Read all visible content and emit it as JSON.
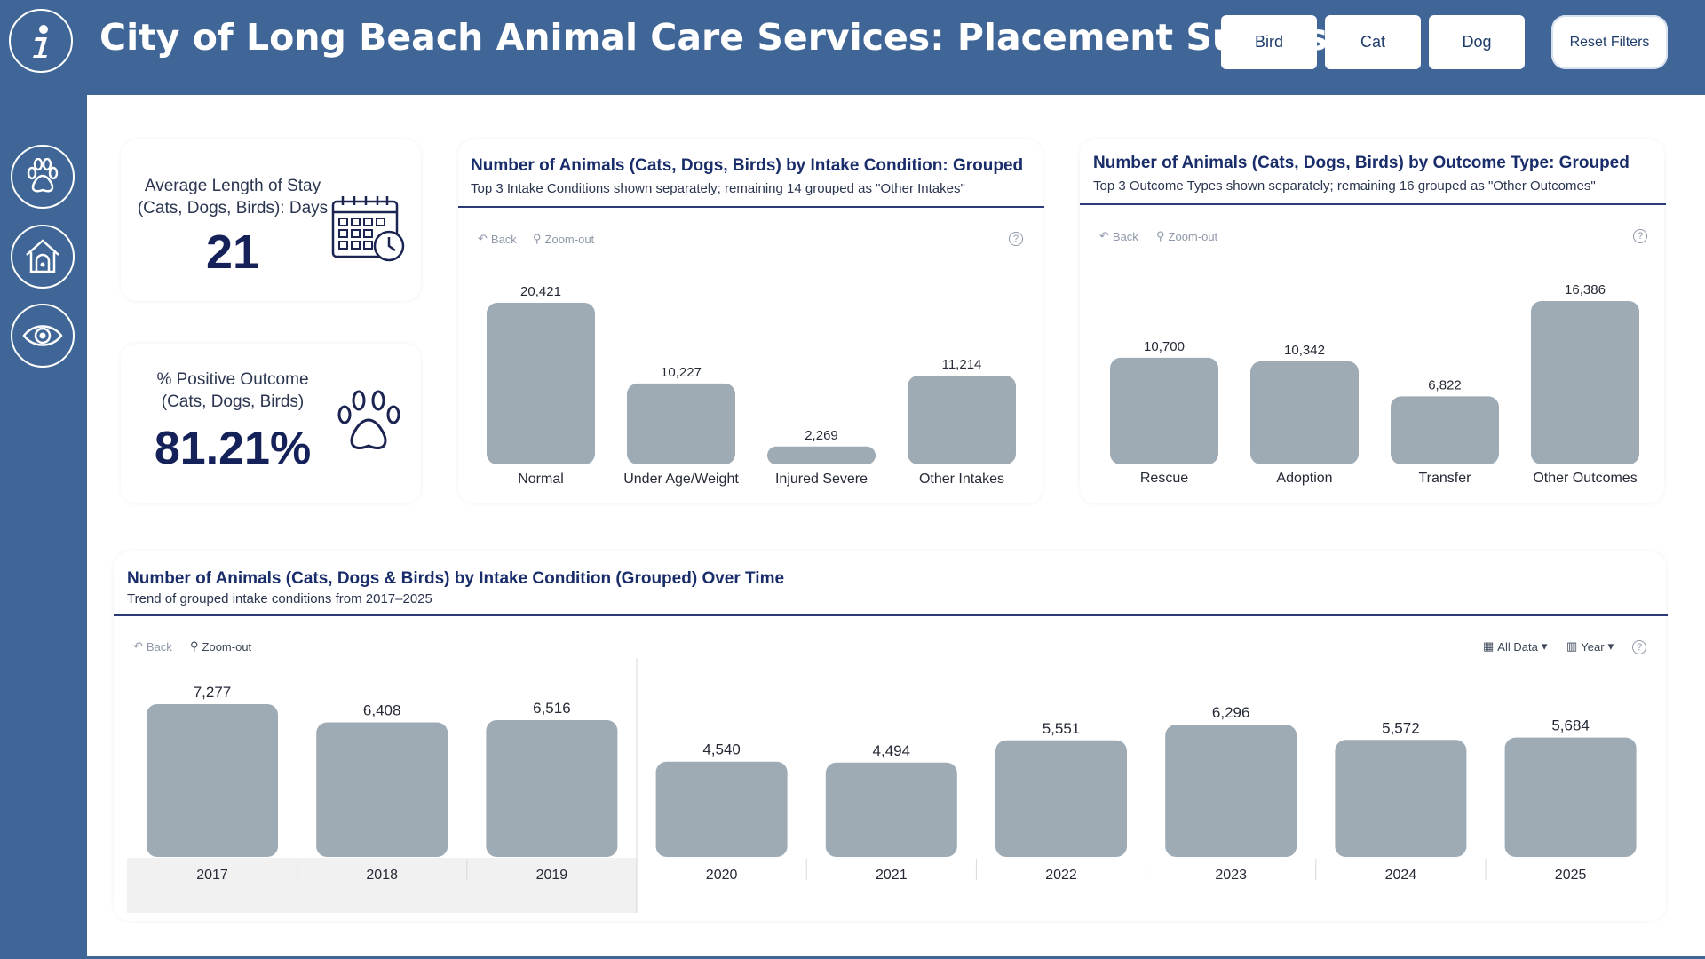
{
  "header": {
    "title": "City of Long Beach Animal Care Services: Placement Success",
    "filters": [
      "Bird",
      "Cat",
      "Dog"
    ],
    "reset_label": "Reset Filters"
  },
  "sidebar": {
    "icons": [
      "info-icon",
      "paw-icon",
      "pet-house-icon",
      "eye-icon"
    ]
  },
  "kpi": {
    "stay": {
      "label_line1": "Average Length of Stay",
      "label_line2": "(Cats, Dogs, Birds): Days",
      "value": "21"
    },
    "positive": {
      "label_line1": "% Positive Outcome",
      "label_line2": "(Cats, Dogs, Birds)",
      "value": "81.21%"
    }
  },
  "toolbar": {
    "back": "Back",
    "zoom_out": "Zoom-out",
    "all_data": "All Data",
    "year": "Year",
    "help": "?"
  },
  "charts": {
    "intake": {
      "title": "Number of Animals (Cats, Dogs, Birds) by Intake Condition: Grouped",
      "subtitle": "Top 3 Intake Conditions shown separately; remaining 14 grouped as \"Other Intakes\""
    },
    "outcome": {
      "title": "Number of Animals (Cats, Dogs, Birds) by Outcome Type: Grouped",
      "subtitle": "Top 3 Outcome Types shown separately; remaining 16 grouped as \"Other Outcomes\""
    },
    "trend": {
      "title": "Number of Animals (Cats, Dogs & Birds) by Intake Condition (Grouped) Over Time",
      "subtitle": "Trend of grouped intake conditions from 2017–2025"
    }
  },
  "chart_data": [
    {
      "type": "bar",
      "title": "Number of Animals (Cats, Dogs, Birds) by Intake Condition: Grouped",
      "categories": [
        "Normal",
        "Under Age/Weight",
        "Injured Severe",
        "Other Intakes"
      ],
      "values": [
        20421,
        10227,
        2269,
        11214
      ],
      "labels": [
        "20,421",
        "10,227",
        "2,269",
        "11,214"
      ],
      "color": "#9eabb5",
      "ylim": [
        0,
        20421
      ]
    },
    {
      "type": "bar",
      "title": "Number of Animals (Cats, Dogs, Birds) by Outcome Type: Grouped",
      "categories": [
        "Rescue",
        "Adoption",
        "Transfer",
        "Other Outcomes"
      ],
      "values": [
        10700,
        10342,
        6822,
        16386
      ],
      "labels": [
        "10,700",
        "10,342",
        "6,822",
        "16,386"
      ],
      "color": "#9eabb5",
      "ylim": [
        0,
        16386
      ]
    },
    {
      "type": "bar",
      "title": "Number of Animals (Cats, Dogs & Birds) by Intake Condition (Grouped) Over Time",
      "categories": [
        "2017",
        "2018",
        "2019",
        "2020",
        "2021",
        "2022",
        "2023",
        "2024",
        "2025"
      ],
      "values": [
        7277,
        6408,
        6516,
        4540,
        4494,
        5551,
        6296,
        5572,
        5684
      ],
      "labels": [
        "7,277",
        "6,408",
        "6,516",
        "4,540",
        "4,494",
        "5,551",
        "6,296",
        "5,572",
        "5,684"
      ],
      "color": "#9eabb5",
      "ylim": [
        0,
        7277
      ]
    }
  ]
}
